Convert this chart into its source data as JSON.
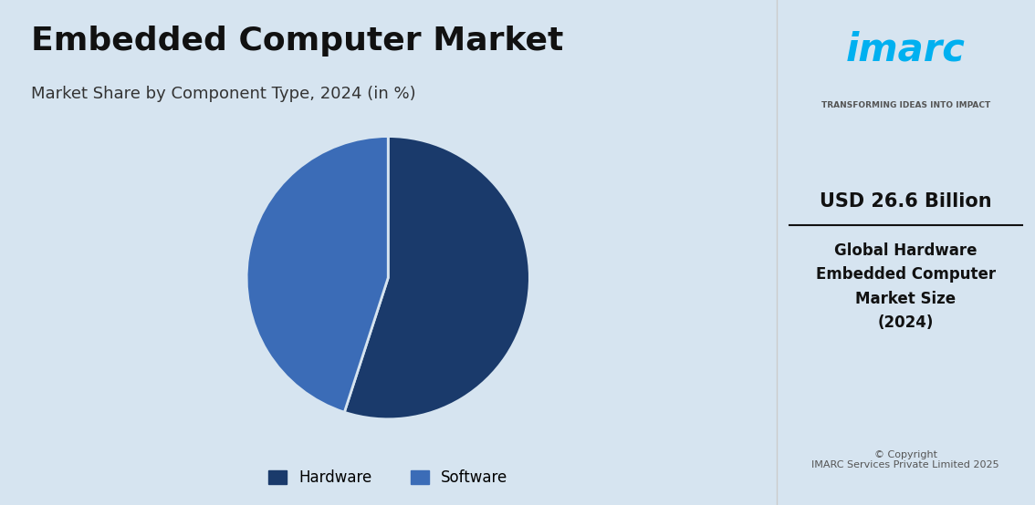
{
  "title": "Embedded Computer Market",
  "subtitle": "Market Share by Component Type, 2024 (in %)",
  "pie_values": [
    55,
    45
  ],
  "pie_labels": [
    "Hardware",
    "Software"
  ],
  "pie_colors": [
    "#1a3a6b",
    "#3b6cb7"
  ],
  "bg_color_left": "#d6e4f0",
  "bg_color_right": "#ffffff",
  "title_fontsize": 26,
  "subtitle_fontsize": 13,
  "usd_text": "USD 26.6 Billion",
  "desc_text": "Global Hardware\nEmbedded Computer\nMarket Size\n(2024)",
  "copyright_text": "© Copyright\nIMARC Services Private Limited 2025",
  "imarc_color": "#00b0f0",
  "imarc_tagline": "TRANSFORMING IDEAS INTO IMPACT",
  "legend_hardware": "Hardware",
  "legend_software": "Software"
}
